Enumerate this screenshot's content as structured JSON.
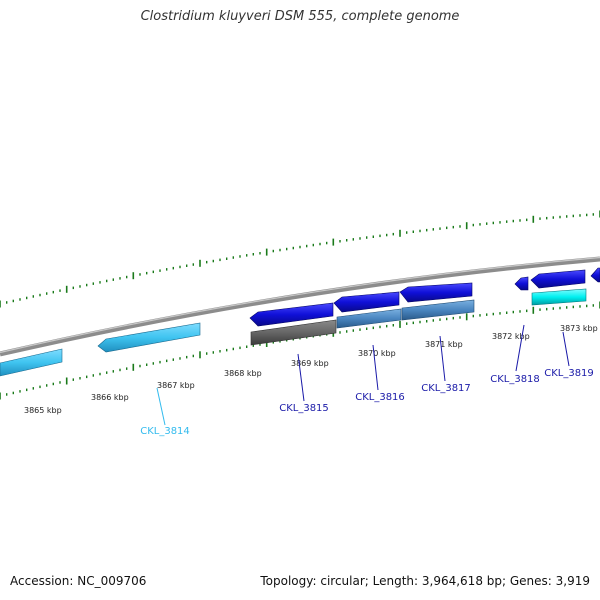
{
  "title": "Clostridium kluyveri DSM 555, complete genome",
  "accession": "Accession: NC_009706",
  "summary": "Topology: circular; Length: 3,964,618 bp; Genes: 3,919",
  "colors": {
    "background": "#ffffff",
    "backbone": "#8c8c8c",
    "tick": "#1a7a1a",
    "gene_light_blue": "#3fc4f0",
    "gene_blue": "#1010d8",
    "gene_steel": "#4a86c0",
    "gene_gray": "#666666",
    "gene_cyan": "#00f0f0",
    "label_blue": "#1a1aa8",
    "label_cyan": "#33bbee"
  },
  "scale_labels": [
    "3865 kbp",
    "3866 kbp",
    "3867 kbp",
    "3868 kbp",
    "3869 kbp",
    "3870 kbp",
    "3871 kbp",
    "3872 kbp",
    "3873 kbp"
  ],
  "genes": [
    {
      "label": "CKL_3814",
      "color": "#33bbee"
    },
    {
      "label": "CKL_3815",
      "color": "#1a1aa8"
    },
    {
      "label": "CKL_3816",
      "color": "#1a1aa8"
    },
    {
      "label": "CKL_3817",
      "color": "#1a1aa8"
    },
    {
      "label": "CKL_3818",
      "color": "#1a1aa8"
    },
    {
      "label": "CKL_3819",
      "color": "#1a1aa8"
    }
  ]
}
